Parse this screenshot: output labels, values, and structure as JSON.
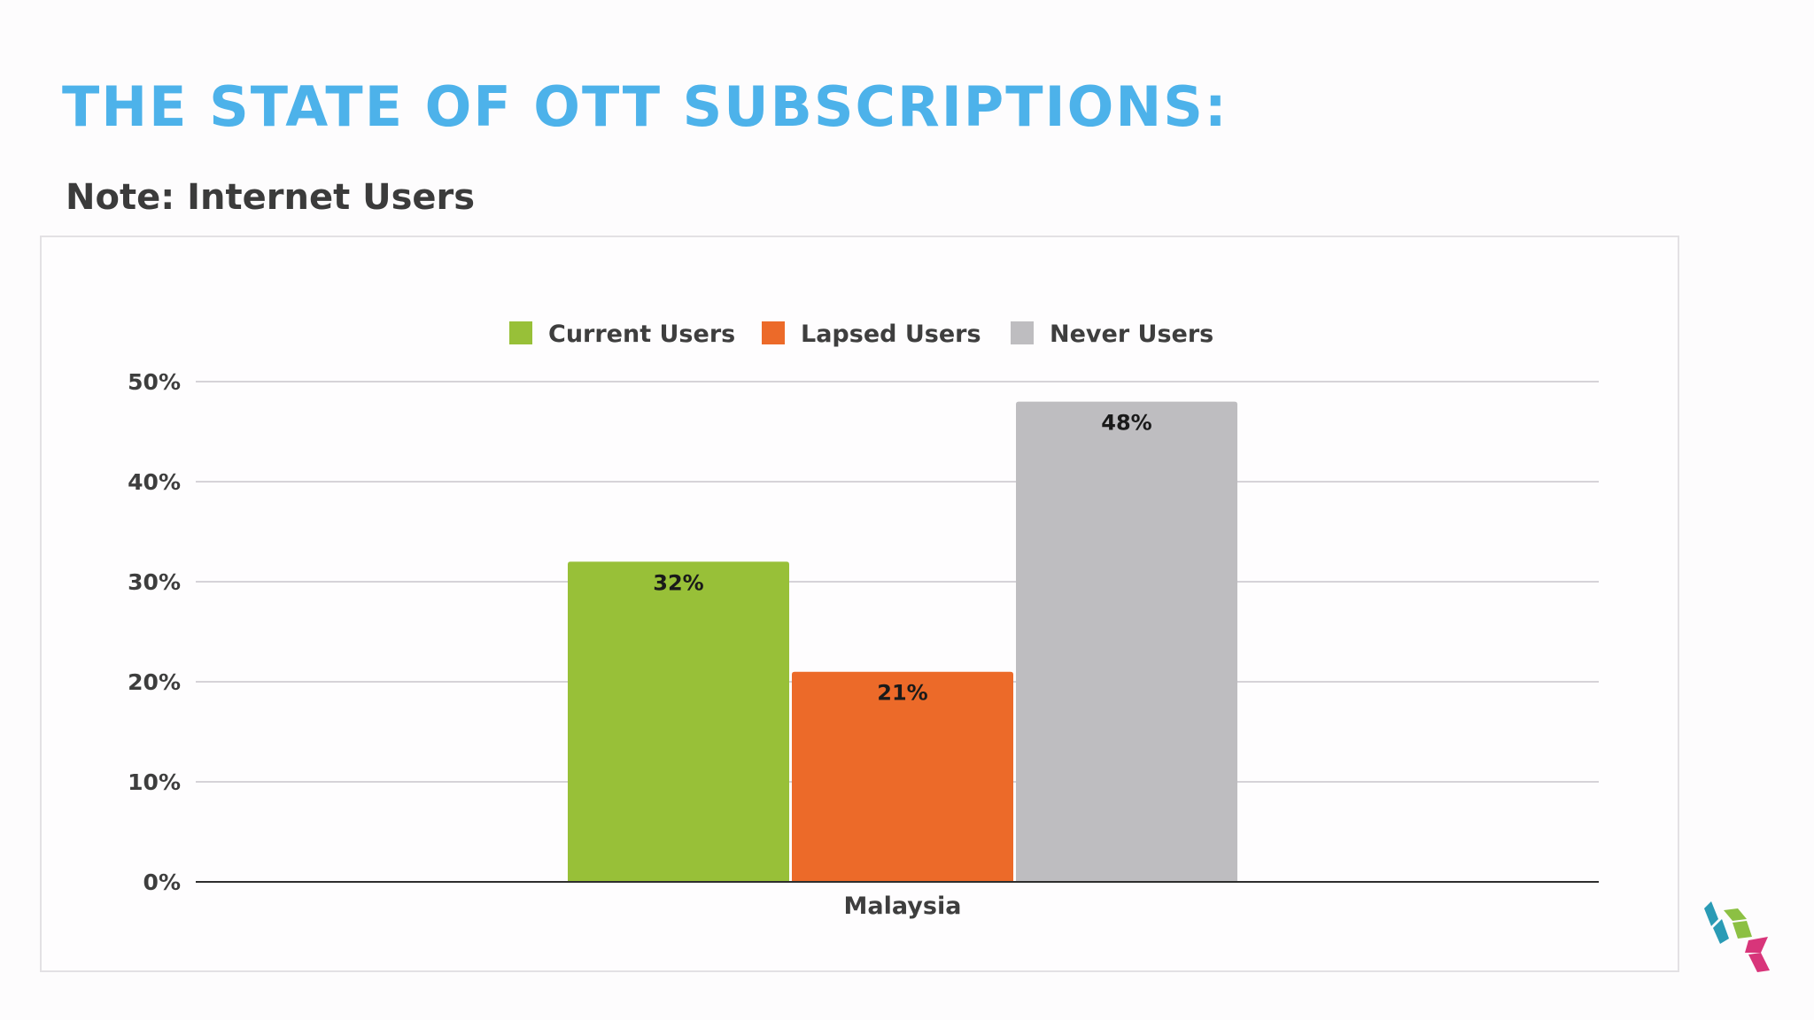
{
  "slide": {
    "title": "THE STATE OF OTT SUBSCRIPTIONS:",
    "subtitle": "Note: Internet Users"
  },
  "logo": {
    "icon": "cube-logo-icon",
    "colors": [
      "#2a9bb5",
      "#8cc043",
      "#d8357a"
    ]
  },
  "chart_data": {
    "type": "bar",
    "categories": [
      "Malaysia"
    ],
    "series": [
      {
        "name": "Current Users",
        "values": [
          32
        ],
        "labels": [
          "32%"
        ],
        "color": "#98c038"
      },
      {
        "name": "Lapsed Users",
        "values": [
          21
        ],
        "labels": [
          "21%"
        ],
        "color": "#ec6a29"
      },
      {
        "name": "Never Users",
        "values": [
          48
        ],
        "labels": [
          "48%"
        ],
        "color": "#bebdc0"
      }
    ],
    "yticks": [
      0,
      10,
      20,
      30,
      40,
      50
    ],
    "ytick_labels": [
      "0%",
      "10%",
      "20%",
      "30%",
      "40%",
      "50%"
    ],
    "ylim": [
      0,
      50
    ],
    "grid": true,
    "legend": "top-center"
  }
}
